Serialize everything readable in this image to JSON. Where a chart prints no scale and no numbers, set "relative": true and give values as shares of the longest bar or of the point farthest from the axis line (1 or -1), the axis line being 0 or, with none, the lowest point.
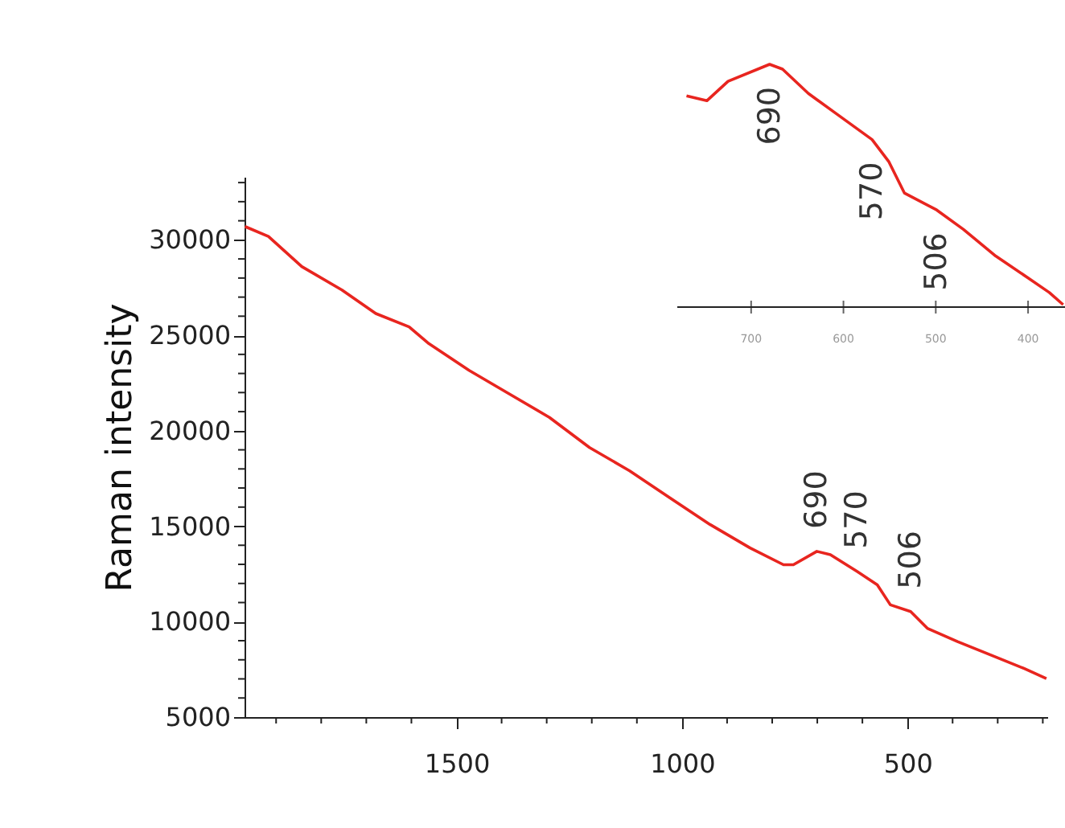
{
  "chart_data": [
    {
      "type": "line",
      "ylabel": "Raman intensity",
      "tick_labels": "xy",
      "grid": false,
      "marker": "none",
      "line_style": "solid",
      "x": [
        1969,
        1917,
        1843,
        1754,
        1679,
        1605,
        1561,
        1472,
        1383,
        1294,
        1205,
        1116,
        1027,
        938,
        849,
        775,
        753,
        701,
        671,
        612,
        567,
        538,
        493,
        456,
        389,
        315,
        241,
        192
      ],
      "series": [
        {
          "color": "#e8251f",
          "values": [
            30700,
            30175,
            28600,
            27370,
            26140,
            25440,
            24560,
            23160,
            21930,
            20700,
            19120,
            17900,
            16490,
            15090,
            13860,
            12980,
            12980,
            13680,
            13510,
            12630,
            11930,
            10880,
            10530,
            9650,
            8950,
            8250,
            7540,
            7020
          ]
        }
      ],
      "xlim": [
        1970,
        190
      ],
      "xticks": [
        {
          "value": 1900,
          "label": null
        },
        {
          "value": 1800,
          "label": null
        },
        {
          "value": 1700,
          "label": null
        },
        {
          "value": 1600,
          "label": null
        },
        1500,
        {
          "value": 1400,
          "label": null
        },
        {
          "value": 1300,
          "label": null
        },
        {
          "value": 1200,
          "label": null
        },
        {
          "value": 1100,
          "label": null
        },
        1000,
        {
          "value": 900,
          "label": null
        },
        {
          "value": 800,
          "label": null
        },
        {
          "value": 700,
          "label": null
        },
        {
          "value": 600,
          "label": null
        },
        500,
        {
          "value": 400,
          "label": null
        },
        {
          "value": 300,
          "label": null
        },
        {
          "value": 200,
          "label": null
        }
      ],
      "ylim": [
        5000,
        33300
      ],
      "yticks": [
        5000,
        {
          "value": 6000,
          "label": null
        },
        {
          "value": 7000,
          "label": null
        },
        {
          "value": 8000,
          "label": null
        },
        {
          "value": 9000,
          "label": null
        },
        10000,
        {
          "value": 11000,
          "label": null
        },
        {
          "value": 12000,
          "label": null
        },
        {
          "value": 13000,
          "label": null
        },
        {
          "value": 14000,
          "label": null
        },
        15000,
        {
          "value": 16000,
          "label": null
        },
        {
          "value": 17000,
          "label": null
        },
        {
          "value": 18000,
          "label": null
        },
        {
          "value": 19000,
          "label": null
        },
        20000,
        {
          "value": 21000,
          "label": null
        },
        {
          "value": 22000,
          "label": null
        },
        {
          "value": 23000,
          "label": null
        },
        {
          "value": 24000,
          "label": null
        },
        25000,
        {
          "value": 26000,
          "label": null
        },
        {
          "value": 27000,
          "label": null
        },
        {
          "value": 28000,
          "label": null
        },
        {
          "value": 29000,
          "label": null
        },
        30000,
        {
          "value": 31000,
          "label": null
        },
        {
          "value": 32000,
          "label": null
        },
        {
          "value": 33000,
          "label": null
        }
      ],
      "annotations": [
        {
          "text": "690",
          "x": 701,
          "y": 13680
        },
        {
          "text": "570",
          "x": 612,
          "y": 12630
        },
        {
          "text": "506",
          "x": 493,
          "y": 10530
        }
      ]
    },
    {
      "type": "line",
      "relative": true,
      "tick_labels": "x",
      "grid": false,
      "marker": "none",
      "line_style": "solid",
      "x": [
        770,
        748,
        725,
        680,
        666,
        638,
        609,
        569,
        551,
        534,
        499,
        470,
        435,
        400,
        377,
        362
      ],
      "series": [
        {
          "color": "#e8251f",
          "values": [
            0.87,
            0.85,
            0.93,
            1.0,
            0.98,
            0.88,
            0.8,
            0.69,
            0.6,
            0.47,
            0.4,
            0.32,
            0.21,
            0.12,
            0.06,
            0.01
          ]
        }
      ],
      "xlim": [
        780,
        360
      ],
      "xticks": [
        700,
        600,
        500,
        400
      ],
      "annotations": [
        {
          "text": "690",
          "x": 680,
          "y": 1.0
        },
        {
          "text": "570",
          "x": 569,
          "y": 0.69
        },
        {
          "text": "506",
          "x": 499,
          "y": 0.4
        }
      ]
    }
  ]
}
